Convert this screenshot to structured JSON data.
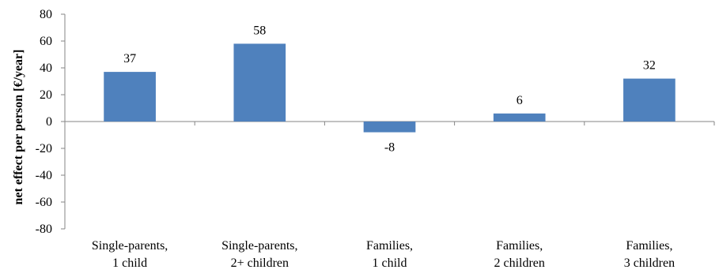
{
  "chart_data": {
    "type": "bar",
    "title": "",
    "xlabel": "",
    "ylabel": "net effect per person [€/year]",
    "categories": [
      [
        "Single-parents,",
        "1 child"
      ],
      [
        "Single-parents,",
        "2+ children"
      ],
      [
        "Families,",
        "1 child"
      ],
      [
        "Families,",
        "2 children"
      ],
      [
        "Families,",
        "3 children"
      ]
    ],
    "values": [
      37,
      58,
      -8,
      6,
      32
    ],
    "data_labels": [
      "37",
      "58",
      "-8",
      "6",
      "32"
    ],
    "ylim": [
      -80,
      80
    ],
    "yticks": [
      80,
      60,
      40,
      20,
      0,
      -20,
      -40,
      -60,
      -80
    ],
    "grid": false,
    "legend": "none",
    "bar_color": "#4F81BD"
  }
}
